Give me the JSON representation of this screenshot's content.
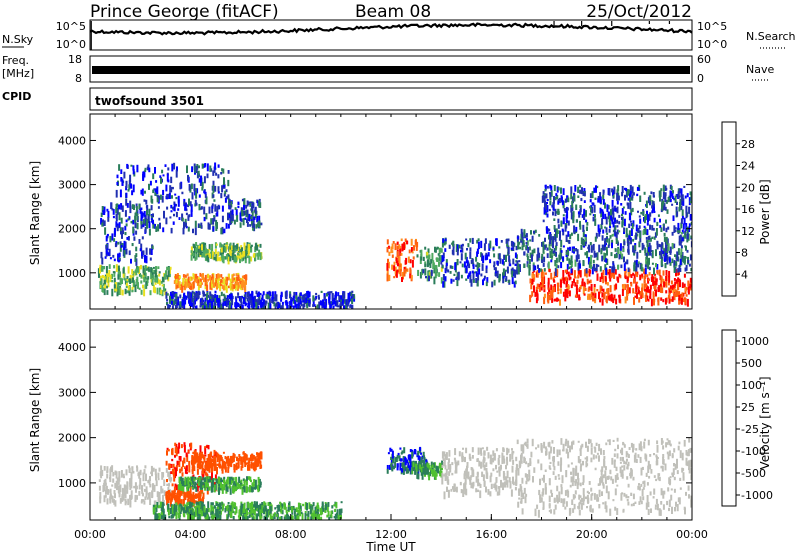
{
  "header": {
    "station": "Prince George (fitACF)",
    "beam": "Beam 08",
    "date": "25/Oct/2012"
  },
  "noise_panel": {
    "left_label": "N.Sky",
    "left_ticks": [
      "10^5",
      "10^0"
    ],
    "right_ticks": [
      "10^5",
      "10^0"
    ],
    "right_label": "N.Search"
  },
  "freq_panel": {
    "left_label_line1": "Freq.",
    "left_label_line2": "[MHz]",
    "left_ticks": [
      "18",
      "8"
    ],
    "right_ticks": [
      "60",
      "0"
    ],
    "right_label": "Nave",
    "freq_mhz": 10.3
  },
  "cpid_panel": {
    "left_label": "CPID",
    "program": "twofsound 3501"
  },
  "colors": {
    "power": [
      "#0000ff",
      "#2030b0",
      "#2a7d5a",
      "#4faa60",
      "#e9e020",
      "#ff9020",
      "#ff6010",
      "#ff0000"
    ],
    "velocity": [
      "#ff0000",
      "#ff5000",
      "#ff9020",
      "#c8c8c0",
      "#c8c8c0",
      "#50c030",
      "#2a7d5a",
      "#0000ff"
    ],
    "ground_scatter": "#c0c0ba"
  },
  "chart_data": [
    {
      "type": "heatmap",
      "title": "Power",
      "xlabel": "",
      "ylabel": "Slant Range [km]",
      "xlim": [
        "00:00",
        "24:00"
      ],
      "ylim": [
        180,
        4600
      ],
      "y_ticks": [
        1000,
        2000,
        3000,
        4000
      ],
      "colorbar_label": "Power [dB]",
      "colorbar_ticks": [
        4,
        8,
        12,
        16,
        20,
        24,
        28
      ],
      "colorbar_range": [
        0,
        32
      ],
      "scatter_regions": [
        {
          "t": [
            0.3,
            3.2
          ],
          "r": [
            600,
            1200
          ],
          "db": 14
        },
        {
          "t": [
            0.4,
            2.5
          ],
          "r": [
            1300,
            2600
          ],
          "db": 5
        },
        {
          "t": [
            1.0,
            5.5
          ],
          "r": [
            2000,
            3500
          ],
          "db": 6
        },
        {
          "t": [
            3.3,
            6.2
          ],
          "r": [
            700,
            1000
          ],
          "db": 22
        },
        {
          "t": [
            4.0,
            6.8
          ],
          "r": [
            1350,
            1700
          ],
          "db": 14
        },
        {
          "t": [
            5.5,
            6.8
          ],
          "r": [
            2100,
            2700
          ],
          "db": 7
        },
        {
          "t": [
            3.0,
            10.5
          ],
          "r": [
            250,
            600
          ],
          "db": 5
        },
        {
          "t": [
            11.8,
            13.0
          ],
          "r": [
            900,
            1800
          ],
          "db": 26
        },
        {
          "t": [
            13.0,
            14.0
          ],
          "r": [
            900,
            1600
          ],
          "db": 12
        },
        {
          "t": [
            14.0,
            17.0
          ],
          "r": [
            800,
            1800
          ],
          "db": 6
        },
        {
          "t": [
            17.5,
            24.0
          ],
          "r": [
            400,
            1100
          ],
          "db": 28
        },
        {
          "t": [
            17.0,
            24.0
          ],
          "r": [
            1100,
            2000
          ],
          "db": 8
        },
        {
          "t": [
            18.0,
            24.0
          ],
          "r": [
            2000,
            3000
          ],
          "db": 6
        }
      ]
    },
    {
      "type": "heatmap",
      "title": "Velocity",
      "xlabel": "Time UT",
      "ylabel": "Slant Range [km]",
      "xlim": [
        "00:00",
        "24:00"
      ],
      "ylim": [
        180,
        4600
      ],
      "y_ticks": [
        1000,
        2000,
        3000,
        4000
      ],
      "x_ticks": [
        "00:00",
        "04:00",
        "08:00",
        "12:00",
        "16:00",
        "20:00",
        "00:00"
      ],
      "colorbar_label": "Velocity [m s⁻¹]",
      "colorbar_ticks": [
        1000,
        500,
        100,
        25,
        -25,
        -100,
        -500,
        -1000
      ],
      "scatter_regions": [
        {
          "t": [
            0.3,
            3.2
          ],
          "r": [
            600,
            1400
          ],
          "v": "ground"
        },
        {
          "t": [
            3.0,
            5.0
          ],
          "r": [
            900,
            1900
          ],
          "v": -500
        },
        {
          "t": [
            4.0,
            6.8
          ],
          "r": [
            1350,
            1700
          ],
          "v": -200
        },
        {
          "t": [
            3.5,
            6.8
          ],
          "r": [
            900,
            1150
          ],
          "v": 100
        },
        {
          "t": [
            3.0,
            4.5
          ],
          "r": [
            600,
            850
          ],
          "v": -200
        },
        {
          "t": [
            11.8,
            13.4
          ],
          "r": [
            1300,
            1800
          ],
          "v": 500
        },
        {
          "t": [
            12.8,
            14.0
          ],
          "r": [
            1200,
            1500
          ],
          "v": 100
        },
        {
          "t": [
            14.0,
            17.0
          ],
          "r": [
            800,
            1800
          ],
          "v": "ground"
        },
        {
          "t": [
            17.0,
            24.0
          ],
          "r": [
            400,
            2000
          ],
          "v": "ground"
        },
        {
          "t": [
            2.5,
            10.0
          ],
          "r": [
            250,
            600
          ],
          "v": 100
        }
      ]
    }
  ]
}
